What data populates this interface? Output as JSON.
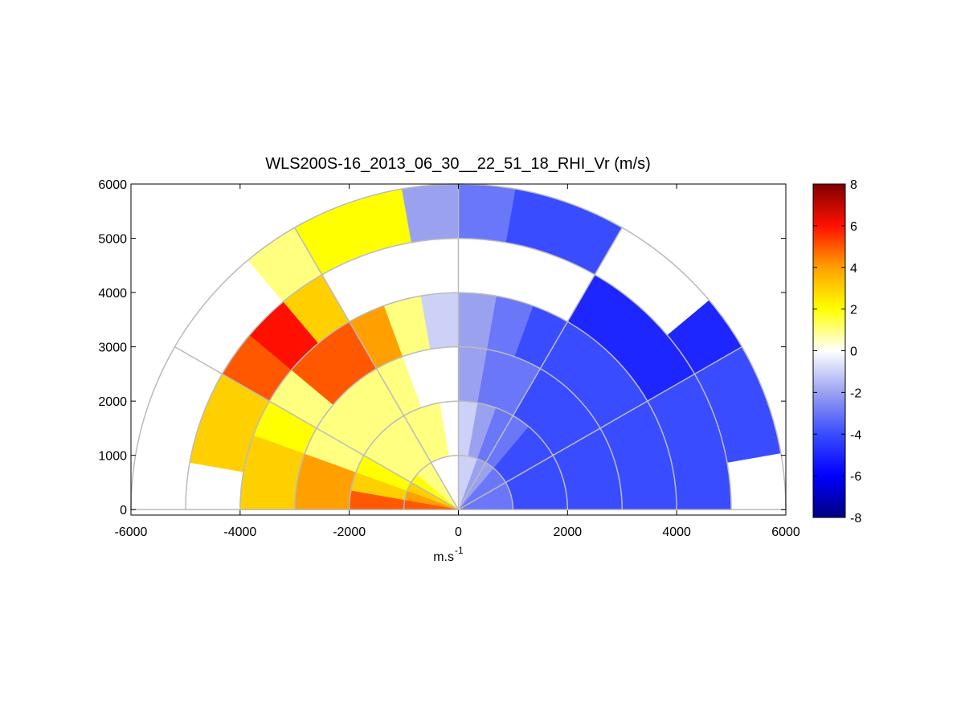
{
  "chart_data": {
    "type": "rhi",
    "title": "WLS200S-16_2013_06_30__22_51_18_RHI_Vr (m/s)",
    "xlabel": {
      "text": "m.s",
      "superscript": "-1"
    },
    "xlim": [
      -6000,
      6000
    ],
    "xticks": [
      -6000,
      -4000,
      -2000,
      0,
      2000,
      4000,
      6000
    ],
    "ylim": [
      -100,
      6000
    ],
    "yticks": [
      0,
      1000,
      2000,
      3000,
      4000,
      5000,
      6000
    ],
    "range_rings": [
      1000,
      2000,
      3000,
      4000,
      5000,
      6000
    ],
    "spoke_angles": [
      0,
      30,
      60,
      90,
      120,
      150,
      180
    ],
    "angle_bins": [
      0,
      10,
      20,
      30,
      40,
      50,
      60,
      70,
      80,
      90,
      100,
      110,
      120,
      130,
      140,
      150,
      160,
      170,
      180
    ],
    "range_bins": [
      0,
      1000,
      2000,
      3000,
      4000,
      5000,
      6000
    ],
    "values": [
      [
        -3,
        -4,
        -4,
        -4,
        -4,
        null
      ],
      [
        -3,
        -4,
        -4,
        -4,
        -4,
        -4
      ],
      [
        -3,
        -4,
        -4,
        -4,
        -4,
        -4
      ],
      [
        -3,
        -4,
        -4,
        -4,
        -5,
        -5
      ],
      [
        -3,
        -4,
        -4,
        -4,
        -5,
        null
      ],
      [
        -2,
        -3,
        -4,
        -4,
        -5,
        null
      ],
      [
        -2,
        -3,
        -3,
        -4,
        null,
        -4
      ],
      [
        -1,
        -2,
        -3,
        -3,
        null,
        -4
      ],
      [
        -1,
        -1,
        -2,
        -2,
        null,
        -3
      ],
      [
        0,
        0,
        0,
        -1,
        null,
        -2
      ],
      [
        0,
        1,
        0,
        1,
        null,
        2
      ],
      [
        0,
        1,
        1,
        4,
        null,
        2
      ],
      [
        1,
        1,
        1,
        5,
        3,
        1
      ],
      [
        1,
        1,
        1,
        5,
        6,
        null
      ],
      [
        2,
        1,
        1,
        1,
        5,
        null
      ],
      [
        3,
        2,
        1,
        2,
        3,
        null
      ],
      [
        4,
        3,
        4,
        3,
        3,
        null
      ],
      [
        5,
        5,
        4,
        3,
        null,
        null
      ]
    ],
    "clim": [
      -8,
      8
    ],
    "cticks": [
      -8,
      -6,
      -4,
      -2,
      0,
      2,
      4,
      6,
      8
    ],
    "colormap": [
      "#00007f",
      "#0000ff",
      "#3a4cff",
      "#9aa2f0",
      "#ffffff",
      "#ffff00",
      "#ffa000",
      "#ff1000",
      "#7f0000"
    ]
  }
}
